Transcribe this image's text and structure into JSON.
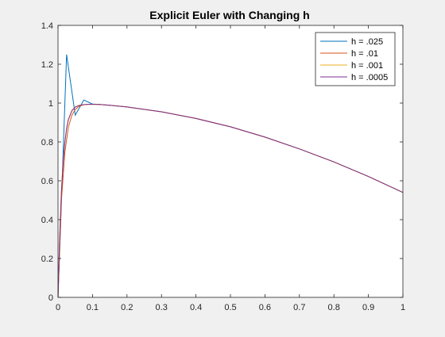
{
  "chart_data": {
    "type": "line",
    "title": "Explicit Euler with Changing h",
    "xlabel": "",
    "ylabel": "",
    "xlim": [
      0,
      1
    ],
    "ylim": [
      0,
      1.4
    ],
    "xticks": [
      0,
      0.1,
      0.2,
      0.3,
      0.4,
      0.5,
      0.6,
      0.7,
      0.8,
      0.9,
      1
    ],
    "xtick_labels": [
      "0",
      "0.1",
      "0.2",
      "0.3",
      "0.4",
      "0.5",
      "0.6",
      "0.7",
      "0.8",
      "0.9",
      "1"
    ],
    "yticks": [
      0,
      0.2,
      0.4,
      0.6,
      0.8,
      1,
      1.2,
      1.4
    ],
    "ytick_labels": [
      "0",
      "0.2",
      "0.4",
      "0.6",
      "0.8",
      "1",
      "1.2",
      "1.4"
    ],
    "grid": false,
    "legend_position": "top-right",
    "series": [
      {
        "name": "h = .025",
        "color": "#0072bd",
        "x": [
          0,
          0.025,
          0.05,
          0.075,
          0.1,
          0.125,
          0.15,
          0.2,
          0.3,
          0.4,
          0.5,
          0.6,
          0.7,
          0.8,
          0.9,
          1.0
        ],
        "y": [
          0,
          1.25,
          0.938,
          1.016,
          0.995,
          0.9922,
          0.9888,
          0.98,
          0.955,
          0.921,
          0.878,
          0.825,
          0.764,
          0.697,
          0.622,
          0.54
        ]
      },
      {
        "name": "h = .01",
        "color": "#d95319",
        "x": [
          0,
          0.01,
          0.02,
          0.03,
          0.04,
          0.05,
          0.06,
          0.07,
          0.08,
          0.09,
          0.1,
          0.12,
          0.15,
          0.2,
          0.3,
          0.4,
          0.5,
          0.6,
          0.7,
          0.8,
          0.9,
          1.0
        ],
        "y": [
          0,
          0.5,
          0.75,
          0.875,
          0.937,
          0.967,
          0.982,
          0.989,
          0.993,
          0.994,
          0.994,
          0.993,
          0.989,
          0.98,
          0.955,
          0.921,
          0.878,
          0.825,
          0.764,
          0.697,
          0.622,
          0.54
        ]
      },
      {
        "name": "h = .001",
        "color": "#edb120",
        "x": [
          0,
          0.005,
          0.01,
          0.015,
          0.02,
          0.025,
          0.03,
          0.04,
          0.05,
          0.06,
          0.07,
          0.08,
          0.1,
          0.12,
          0.15,
          0.2,
          0.3,
          0.4,
          0.5,
          0.6,
          0.7,
          0.8,
          0.9,
          1.0
        ],
        "y": [
          0,
          0.328,
          0.552,
          0.703,
          0.805,
          0.872,
          0.917,
          0.962,
          0.98,
          0.988,
          0.991,
          0.993,
          0.994,
          0.993,
          0.989,
          0.98,
          0.955,
          0.921,
          0.878,
          0.825,
          0.764,
          0.697,
          0.622,
          0.54
        ]
      },
      {
        "name": "h = .0005",
        "color": "#7e2f8e",
        "x": [
          0,
          0.005,
          0.01,
          0.015,
          0.02,
          0.025,
          0.03,
          0.04,
          0.05,
          0.06,
          0.07,
          0.08,
          0.1,
          0.12,
          0.15,
          0.2,
          0.3,
          0.4,
          0.5,
          0.6,
          0.7,
          0.8,
          0.9,
          1.0
        ],
        "y": [
          0,
          0.32,
          0.545,
          0.697,
          0.8,
          0.869,
          0.914,
          0.96,
          0.979,
          0.987,
          0.991,
          0.993,
          0.994,
          0.993,
          0.989,
          0.98,
          0.955,
          0.921,
          0.878,
          0.825,
          0.764,
          0.697,
          0.622,
          0.54
        ]
      }
    ]
  }
}
